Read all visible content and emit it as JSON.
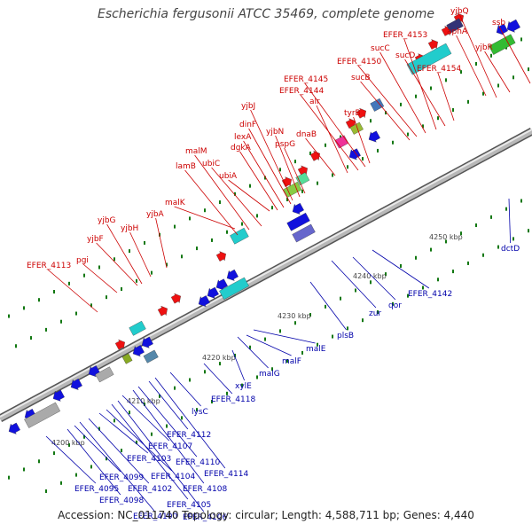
{
  "title": "Escherichia fergusonii ATCC 35469, complete genome",
  "footer": "Accession: NC_011740    Topology: circular; Length: 4,588,711 bp; Genes: 4,440",
  "colors": {
    "plus_label": "#cc0000",
    "minus_label": "#0000aa",
    "backbone": "#aaaaaa",
    "tick": "#117711"
  },
  "scale_labels": [
    "4200 kbp",
    "4210 kbp",
    "4220 kbp",
    "4230 kbp",
    "4240 kbp",
    "4250 kbp"
  ],
  "top_genes": [
    "EFER_4113",
    "pgi",
    "yjbF",
    "yjbG",
    "yjbH",
    "yjbA",
    "malK",
    "lamB",
    "malM",
    "ubiC",
    "ubiA",
    "dgkA",
    "lexA",
    "dinF",
    "yjbJ",
    "yjbN",
    "pspG",
    "dnaB",
    "alr",
    "EFER_4144",
    "EFER_4145",
    "tyrB",
    "sucB",
    "EFER_4150",
    "sucC",
    "EFER_4153",
    "sucD",
    "EFER_4154",
    "aphA",
    "yjbQ",
    "yjbR",
    "ssb"
  ],
  "bottom_genes": [
    "EFER_4095",
    "EFER_4098",
    "EFER_4099",
    "EFER_4100",
    "EFER_4102",
    "EFER_4103",
    "EFER_4104",
    "EFER_4105",
    "EFER_4106",
    "EFER_4107",
    "EFER_4108",
    "EFER_4110",
    "EFER_4112",
    "EFER_4114",
    "lysC",
    "EFER_4118",
    "xylE",
    "malG",
    "malF",
    "malE",
    "plsB",
    "zur",
    "qor",
    "EFER_4142",
    "dctD"
  ]
}
